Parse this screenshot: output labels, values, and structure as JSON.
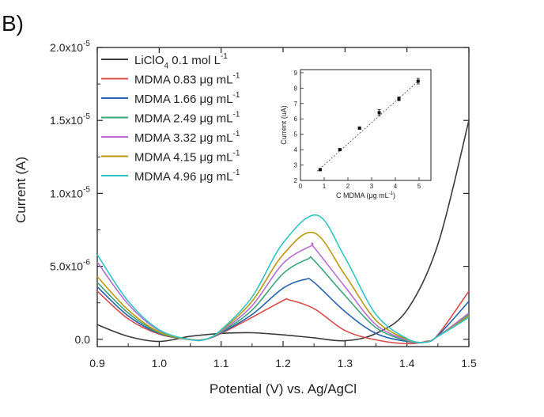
{
  "panel_label": "B)",
  "chart_data": [
    {
      "type": "line",
      "xlabel": "Potential (V) vs. Ag/AgCl",
      "ylabel": "Current (A)",
      "xlim": [
        0.9,
        1.5
      ],
      "ylim": [
        -5e-07,
        2e-05
      ],
      "xticks": [
        {
          "v": 0.9,
          "label": "0.9"
        },
        {
          "v": 1.0,
          "label": "1.0"
        },
        {
          "v": 1.1,
          "label": "1.1"
        },
        {
          "v": 1.2,
          "label": "1.2"
        },
        {
          "v": 1.3,
          "label": "1.3"
        },
        {
          "v": 1.4,
          "label": "1.4"
        },
        {
          "v": 1.5,
          "label": "1.5"
        }
      ],
      "yticks": [
        {
          "v": 0,
          "label": "0.0",
          "exp": ""
        },
        {
          "v": 5e-06,
          "label": "5.0x10",
          "exp": "-6"
        },
        {
          "v": 1e-05,
          "label": "1.0x10",
          "exp": "-5"
        },
        {
          "v": 1.5e-05,
          "label": "1.5x10",
          "exp": "-5"
        },
        {
          "v": 2e-05,
          "label": "2.0x10",
          "exp": "-5"
        }
      ],
      "grid": false,
      "legend_position": "top-left",
      "series": [
        {
          "name_main": "LiClO",
          "name_sub": "4",
          "name_rest": " 0.1 mol L",
          "name_sup": "-1",
          "color": "#3a3a3a",
          "x": [
            0.9,
            0.95,
            1.0,
            1.05,
            1.1,
            1.15,
            1.2,
            1.25,
            1.3,
            1.35,
            1.4,
            1.45,
            1.5
          ],
          "y": [
            1e-06,
            2e-07,
            -1.5e-07,
            2e-07,
            4e-07,
            4.5e-07,
            3e-07,
            1e-07,
            -1e-07,
            4e-07,
            2e-06,
            6.5e-06,
            1.5e-05
          ]
        },
        {
          "name_main": "MDMA 0.83 μg mL",
          "name_sub": "",
          "name_rest": "",
          "name_sup": "-1",
          "color": "#d84b4b",
          "x": [
            0.9,
            0.95,
            1.0,
            1.05,
            1.075,
            1.1,
            1.15,
            1.2,
            1.21,
            1.25,
            1.3,
            1.35,
            1.4,
            1.43,
            1.45,
            1.5
          ],
          "y": [
            3.3e-06,
            1.4e-06,
            3.5e-07,
            -2e-08,
            0.0,
            4e-07,
            1.5e-06,
            2.65e-06,
            2.7e-06,
            2.1e-06,
            6e-07,
            -4e-08,
            -3e-07,
            -1.5e-07,
            3e-07,
            3.3e-06
          ]
        },
        {
          "name_main": "MDMA 1.66 μg mL",
          "name_sub": "",
          "name_rest": "",
          "name_sup": "-1",
          "color": "#2563b0",
          "x": [
            0.9,
            0.95,
            1.0,
            1.05,
            1.075,
            1.1,
            1.15,
            1.2,
            1.235,
            1.25,
            1.3,
            1.35,
            1.4,
            1.43,
            1.45,
            1.5
          ],
          "y": [
            3.6e-06,
            1.6e-06,
            4e-07,
            -2e-08,
            0.0,
            4.5e-07,
            1.7e-06,
            3.5e-06,
            4.1e-06,
            3.9e-06,
            1.9e-06,
            4e-07,
            -1.5e-07,
            -2e-07,
            2.5e-07,
            2.6e-06
          ]
        },
        {
          "name_main": "MDMA 2.49 μg mL",
          "name_sub": "",
          "name_rest": "",
          "name_sup": "-1",
          "color": "#3aa67a",
          "x": [
            0.9,
            0.95,
            1.0,
            1.05,
            1.075,
            1.1,
            1.15,
            1.2,
            1.24,
            1.25,
            1.3,
            1.35,
            1.4,
            1.43,
            1.45,
            1.5
          ],
          "y": [
            3.9e-06,
            1.8e-06,
            4.5e-07,
            -2e-08,
            0.0,
            5e-07,
            2e-06,
            4.5e-06,
            5.5e-06,
            5.4e-06,
            3e-06,
            8e-07,
            -1e-07,
            -2e-07,
            2e-07,
            1.7e-06
          ]
        },
        {
          "name_main": "MDMA 3.32 μg mL",
          "name_sub": "",
          "name_rest": "",
          "name_sup": "-1",
          "color": "#b56ed1",
          "x": [
            0.9,
            0.95,
            1.0,
            1.05,
            1.075,
            1.1,
            1.15,
            1.2,
            1.245,
            1.25,
            1.3,
            1.35,
            1.4,
            1.43,
            1.45,
            1.5
          ],
          "y": [
            5.3e-06,
            2.4e-06,
            6e-07,
            -2e-08,
            0.0,
            5.5e-07,
            2.3e-06,
            5.2e-06,
            6.4e-06,
            6.3e-06,
            3.6e-06,
            1e-06,
            -5e-08,
            -2e-07,
            2e-07,
            1.8e-06
          ]
        },
        {
          "name_main": "MDMA 4.15 μg mL",
          "name_sub": "",
          "name_rest": "",
          "name_sup": "-1",
          "color": "#b8980f",
          "x": [
            0.9,
            0.95,
            1.0,
            1.05,
            1.075,
            1.1,
            1.15,
            1.2,
            1.25,
            1.3,
            1.35,
            1.4,
            1.43,
            1.45,
            1.5
          ],
          "y": [
            4.3e-06,
            2e-06,
            5e-07,
            -2e-08,
            0.0,
            6e-07,
            2.6e-06,
            5.8e-06,
            7.3e-06,
            4.4e-06,
            1.3e-06,
            0.0,
            -2e-07,
            2e-07,
            1.6e-06
          ]
        },
        {
          "name_main": "MDMA 4.96 μg mL",
          "name_sub": "",
          "name_rest": "",
          "name_sup": "-1",
          "color": "#2fc4c4",
          "x": [
            0.9,
            0.95,
            1.0,
            1.05,
            1.075,
            1.1,
            1.15,
            1.2,
            1.255,
            1.3,
            1.35,
            1.4,
            1.43,
            1.45,
            1.5
          ],
          "y": [
            5.8e-06,
            2.6e-06,
            6.5e-07,
            -2e-08,
            0.0,
            6.5e-07,
            2.9e-06,
            6.6e-06,
            8.5e-06,
            5.6e-06,
            1.7e-06,
            5e-08,
            -2e-07,
            2e-07,
            1.5e-06
          ]
        }
      ]
    },
    {
      "type": "scatter",
      "xlabel": "C MDMA (μg mL",
      "xlabel_sup": "-1",
      "xlabel_end": ")",
      "ylabel": "Current (uA)",
      "xlim": [
        0,
        5.5
      ],
      "ylim": [
        2,
        9.2
      ],
      "xticks": [
        "0",
        "1",
        "2",
        "3",
        "4",
        "5"
      ],
      "yticks": [
        "2",
        "3",
        "4",
        "5",
        "6",
        "7",
        "8",
        "9"
      ],
      "points": [
        {
          "x": 0.83,
          "y": 2.7,
          "err": 0.05
        },
        {
          "x": 1.66,
          "y": 4.0,
          "err": 0.07
        },
        {
          "x": 2.49,
          "y": 5.4,
          "err": 0.08
        },
        {
          "x": 3.32,
          "y": 6.4,
          "err": 0.2
        },
        {
          "x": 4.15,
          "y": 7.3,
          "err": 0.12
        },
        {
          "x": 4.96,
          "y": 8.45,
          "err": 0.18
        }
      ],
      "fit": {
        "x": [
          0.7,
          5.0
        ],
        "y": [
          2.6,
          8.5
        ]
      }
    }
  ]
}
